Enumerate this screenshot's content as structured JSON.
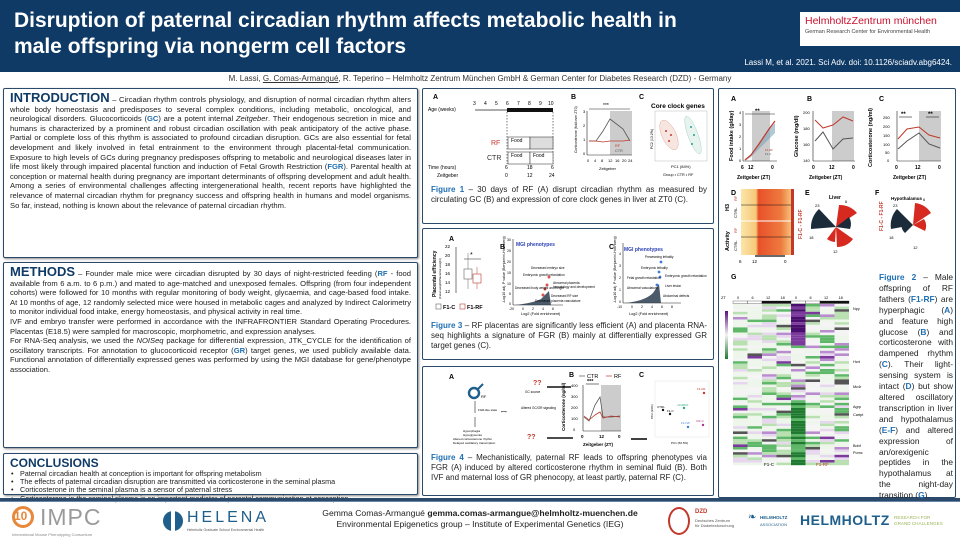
{
  "header": {
    "title_line1": "Disruption of paternal circadian rhythm affects metabolic health in",
    "title_line2": "male offspring via nongerm cell factors",
    "logo_line1": "HelmholtzZentrum münchen",
    "logo_line2": "German Research Center for Environmental Health",
    "citation": "Lassi M, et al. 2021. Sci Adv. doi: 10.1126/sciadv.abg6424."
  },
  "authors": {
    "a1": "M. Lassi, ",
    "a2": "G. Comas-Armangué",
    "a3": ", R. Teperino – Helmholtz Zentrum München GmbH & German Center for Diabetes Research (DZD) - Germany"
  },
  "introduction": {
    "heading": "INTRODUCTION",
    "t1": " – Circadian rhythm controls physiology, and disruption of normal circadian rhythm alters whole body homeostasis and predisposes to several complex conditions, including metabolic, oncological, and neurological disorders. Glucocorticoids (",
    "gc": "GC",
    "t2": ") are a potent internal ",
    "zeit": "Zeitgeber",
    "t3": ". Their endogenous secretion in mice and humans is characterized by a prominent and robust circadian oscillation with peak anticipatory of the active phase. Partial or complete loss of this rhythm is associated to profound circadian disruption. GCs are also essential for fetal development and likely involved in fetal entrainment to the environment through placental-fetal communication. Exposure to high levels of GCs during pregnancy predisposes offspring to metabolic and neurological diseases later in life most likely through impaired placental function and induction of Fetal Growth Restriction (",
    "fgr": "FGR",
    "t4": "). Parental health at conception or maternal health during pregnancy are important determinants of offspring development and adult health. Among a series of environmental challenges affecting intergenerational health, recent reports have highlighted the relevance of maternal circadian rhythm for pregnancy success and offspring health in humans and model organisms. So far, instead, nothing is known about the relevance of paternal circadian rhythm."
  },
  "methods": {
    "heading": "METHODS",
    "t1": " – Founder male mice were circadian disrupted by 30 days of night-restricted feeding (",
    "rf": "RF",
    "t2": " - food available from 6 a.m. to 6 p.m.) and mated to age-matched and unexposed females. Offspring (from four independent cohorts) were followed for 10 months with regular monitoring of body weight, glycaemia, and cage-based food intake. At 10 months of age, 12 randomly selected mice were housed in metabolic cages and analyzed by Indirect Calorimetry to monitor individual food intake, energy homeostasis, and physical activity in real time.",
    "p2": "IVF and embryo transfer were performed in accordance with the INFRAFRONTIER Standard Operating Procedures. Placentas (E18.5) were sampled for macroscopic, morphometric, and expression analyses.",
    "p3a": "For RNA-Seq analysis, we used the ",
    "noiseq": "NOISeq",
    "p3b": " package for differential expression, JTK_CYCLE for the identification of oscillatory transcripts. For annotation to glucocorticoid receptor (",
    "gr": "GR",
    "p3c": ") target genes, we used publicly available data. Functional annotation of differentially expressed genes was performed by using the MGI database for gene/phenotype association."
  },
  "conclusions": {
    "heading": "CONCLUSIONS",
    "items": [
      "Paternal circadian health at conception is important for offspring metabolism",
      "The effects of paternal circadian disruption are transmitted via corticosterone in the seminal plasma",
      "Corticosterone in the seminal plasma is a sensor of paternal stress",
      "Corticosterone in the seminal plasma is an important mediator of parental communication at conception"
    ]
  },
  "figure1": {
    "A": "A",
    "B": "B",
    "C": "C",
    "age_label": "Age (weeks)",
    "ages": [
      "3",
      "4",
      "5",
      "6",
      "7",
      "8",
      "9",
      "10"
    ],
    "rf": "RF",
    "ctr": "CTR",
    "food": "Food",
    "time_label": "Time (hours)",
    "times": [
      "6",
      "18",
      "6"
    ],
    "zeit_label": "Zeitgeber",
    "zeits": [
      "0",
      "12",
      "24"
    ],
    "b_ylabel": "Corticosterone (fold over ZT0)",
    "b_xlabel": "Zeitgeber",
    "b_xticks": [
      "0",
      "4",
      "8",
      "12",
      "16",
      "20",
      "24"
    ],
    "b_yticks": [
      "0",
      "1",
      "2",
      "3"
    ],
    "b_sig": "***",
    "b_legend": [
      "RF",
      "CTR"
    ],
    "c_title": "Core clock genes",
    "c_xlabel": "PC1 (84%)",
    "c_ylabel": "PC2 (13.2%)",
    "c_legend": "Group • CTR • RF",
    "caption_label": "Figure 1",
    "caption": " – 30 days of RF (A) disrupt circadian rhythm as measured by circulating GC (B) and expression of core clock genes in liver at ZT0 (C)."
  },
  "figure3": {
    "A": "A",
    "B": "B",
    "C": "C",
    "a_ylabel": "Placental efficiency",
    "a_ysub": "(Fetal weight/Placental weight)",
    "a_yticks": [
      "12",
      "14",
      "16",
      "18",
      "20",
      "22"
    ],
    "a_sig": "*",
    "legend_c": "F1-C",
    "legend_rf": "F1-RF",
    "mgi": "MGI phenotypes",
    "b_ylabel": "-Log10 adj. P value (Benjamini-Hochberg)",
    "b_xlabel": "Log2 (Fold enrichment)",
    "b_yticks": [
      "0",
      "5",
      "10",
      "15",
      "20",
      "25",
      "30"
    ],
    "b_xticks": [
      "-20",
      "0",
      "2",
      "4",
      "6"
    ],
    "b_labels": [
      "Decreased embryo size",
      "Embryonic growth retardation",
      "Abnormal placenta",
      "hematology and development",
      "Decreased body weight and height",
      "Decreased RF size",
      "Decreased placenta vasculature"
    ],
    "c_yticks": [
      "0",
      "1",
      "2",
      "3",
      "4"
    ],
    "c_xticks": [
      "-10",
      "0",
      "2",
      "4",
      "6",
      "8"
    ],
    "c_labels": [
      "Preweaning lethality",
      "Embryonic lethality",
      "Fetal growth retardation",
      "Embryonic growth retardation",
      "Abnormal vasculature",
      "Liver lesion",
      "Abdominal defects"
    ],
    "caption_label": "Figure 3",
    "caption": " – RF placentas are significantly less efficient (A) and placenta RNA-seq highlights a signature of FGR (B) mainly at differentially expressed GR target genes (C)."
  },
  "figure4": {
    "A": "A",
    "B": "B",
    "C": "C",
    "rf_sub": "RF",
    "qq": "??",
    "gc_source": "GC source",
    "fgr_like": "FGR-like state",
    "altered": "Altered GC/GR signaling",
    "outcomes": [
      "Hyperphagia",
      "Hypoglycemia",
      "Altered corticosterone rhythm",
      "Delayed oscillatory transcription"
    ],
    "legend_ctr": "CTR",
    "legend_rf": "RF",
    "b_ylabel": "Corticosterone (ng/ml)",
    "b_yticks": [
      "0",
      "100",
      "200",
      "300",
      "400"
    ],
    "b_xticks": [
      "0",
      "12",
      "0"
    ],
    "b_xlabel": "Zeitgeber (ZT)",
    "b_sig": "***",
    "c_xlabel": "PC1 (50.5%)",
    "c_ylabel": "PC2 (20%)",
    "c_points": [
      "F1-RF",
      "CTRL",
      "F1-C",
      "mGRKO",
      "F1-IVF",
      "IVF-C"
    ],
    "caption_label": "Figure 4",
    "caption": " – Mechanistically, paternal RF leads to offspring phenotypes via FGR (A) induced by altered corticosterone rhythm in seminal fluid (B). Both IVF and maternal loss of GR phenocopy, at least partly, paternal RF (C)."
  },
  "figure2": {
    "A": "A",
    "B": "B",
    "C": "C",
    "D": "D",
    "E": "E",
    "F": "F",
    "G": "G",
    "a_ylabel": "Food intake (g/day)",
    "a_yticks": [
      "0",
      "1",
      "2",
      "3",
      "4"
    ],
    "a_xticks": [
      "6",
      "12",
      "0"
    ],
    "a_sig": "**",
    "b_ylabel": "Glucose (mg/dl)",
    "b_yticks": [
      "140",
      "160",
      "180",
      "200"
    ],
    "b_xticks": [
      "0",
      "12",
      "0"
    ],
    "c_ylabel": "Corticosterone (ng/ml)",
    "c_yticks": [
      "0",
      "50",
      "100",
      "150",
      "200",
      "250"
    ],
    "c_xticks": [
      "0",
      "12",
      "0"
    ],
    "c_sig": "**",
    "xlabel": "Zeitgeber (ZT)",
    "legend": [
      "F1-RF",
      "F1-C"
    ],
    "d_rows": [
      "H3",
      "Activity"
    ],
    "d_sub": [
      "RF",
      "CTRL"
    ],
    "d_xticks": [
      "6",
      "12",
      "0"
    ],
    "e_title": "Liver",
    "f_title": "Hypothalamus",
    "ef_side": "F1-C - F1-RF",
    "e_ticks": [
      "23",
      "6",
      "18",
      "12"
    ],
    "f_ticks": [
      "23",
      "6",
      "18",
      "12"
    ],
    "g_zt": "ZT",
    "g_cols": [
      "0",
      "6",
      "12",
      "18",
      "0",
      "6",
      "12",
      "18"
    ],
    "g_genes": [
      "Npy",
      "Hcrt",
      "Mc4r",
      "Agrp",
      "Cartpt",
      "Bdnf",
      "Pomc"
    ],
    "g_groups": [
      "F1-C",
      "F1-RF"
    ],
    "caption_label": "Figure 2",
    "caption_parts": [
      " – Male offspring of RF fathers (",
      "F1-RF",
      ") are hyperphagic (",
      "A",
      ") and feature high glucose (",
      "B",
      ") and corticosterone with dampened rhythm (",
      "C",
      "). Their light-sensing system is intact (",
      "D",
      ") but show altered oscillatory transcription in liver and hypothalamus (",
      "E-F",
      ") and altered expression of an/orexigenic peptides in the hypothalamus at the night-day transition (",
      "G",
      "). "
    ]
  },
  "footer": {
    "name": "Gemma Comas-Armangué ",
    "email": "gemma.comas-armangue@helmholtz-muenchen.de",
    "group": "Environmental Epigenetics group – Institute of Experimental Genetics (IEG)",
    "impc": "IMPC",
    "impc_sub": "International Mouse Phenotyping Consortium",
    "impc_num": "10",
    "helena": "HELENA",
    "helena_sub": "Helmholtz Graduate School Environmental Health",
    "dzd": "DZD",
    "dzd_sub1": "Deutsches Zentrum",
    "dzd_sub2": "für Diabetesforschung",
    "hassoc1": "HELMHOLTZ",
    "hassoc2": "ASSOCIATION",
    "helmholtz": "HELMHOLTZ",
    "research1": "RESEARCH FOR",
    "research2": "GRAND CHALLENGES"
  },
  "colors": {
    "navy": "#0f3a66",
    "blue": "#1f6fb3",
    "red": "#c0392b"
  }
}
